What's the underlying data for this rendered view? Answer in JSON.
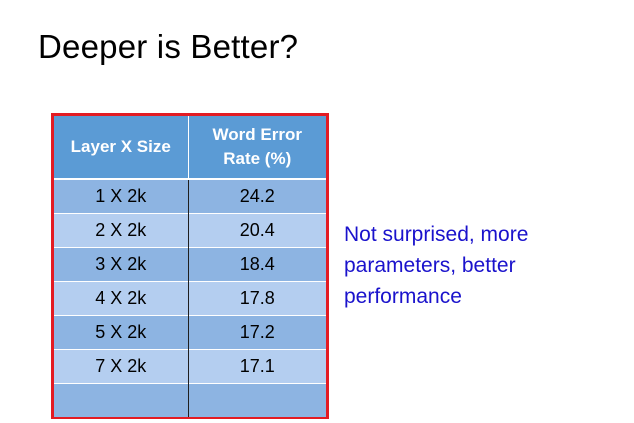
{
  "slide": {
    "title": "Deeper is Better?"
  },
  "table": {
    "headers": [
      "Layer X Size",
      "Word Error Rate (%)"
    ],
    "rows": [
      {
        "layer_size": "1 X 2k",
        "wer": "24.2"
      },
      {
        "layer_size": "2 X 2k",
        "wer": "20.4"
      },
      {
        "layer_size": "3 X 2k",
        "wer": "18.4"
      },
      {
        "layer_size": "4 X 2k",
        "wer": "17.8"
      },
      {
        "layer_size": "5 X 2k",
        "wer": "17.2"
      },
      {
        "layer_size": "7 X 2k",
        "wer": "17.1"
      },
      {
        "layer_size": "",
        "wer": ""
      }
    ],
    "frame_color": "#e31b23",
    "header_color": "#5b9bd5"
  },
  "note": {
    "text": "Not surprised, more parameters, better performance",
    "color": "#1a12cc"
  }
}
